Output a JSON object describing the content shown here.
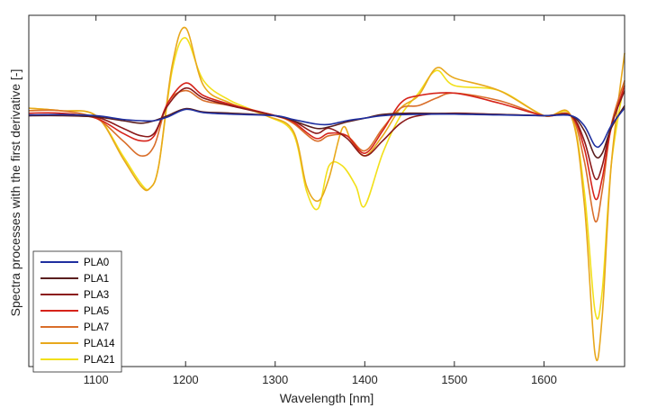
{
  "chart_data": {
    "type": "line",
    "title": "",
    "xlabel": "Wavelength [nm]",
    "ylabel": "Spectra processes with the first derivative [-]",
    "xlim": [
      1025,
      1690
    ],
    "ylim": [
      -1.0,
      0.4
    ],
    "x_ticks": [
      1100,
      1200,
      1300,
      1400,
      1500,
      1600
    ],
    "y_ticks": [],
    "grid": false,
    "legend_position": "bottom-left",
    "series": [
      {
        "name": "PLA0",
        "color": "#1f2f9f",
        "points": [
          [
            1025,
            0.003
          ],
          [
            1060,
            0.004
          ],
          [
            1100,
            0.0
          ],
          [
            1130,
            -0.015
          ],
          [
            1150,
            -0.02
          ],
          [
            1165,
            -0.02
          ],
          [
            1180,
            -0.005
          ],
          [
            1200,
            0.025
          ],
          [
            1220,
            0.012
          ],
          [
            1250,
            0.006
          ],
          [
            1300,
            0.0
          ],
          [
            1320,
            -0.015
          ],
          [
            1345,
            -0.033
          ],
          [
            1360,
            -0.035
          ],
          [
            1380,
            -0.02
          ],
          [
            1400,
            -0.01
          ],
          [
            1420,
            0.0
          ],
          [
            1450,
            0.005
          ],
          [
            1500,
            0.006
          ],
          [
            1550,
            0.003
          ],
          [
            1600,
            0.0
          ],
          [
            1630,
            0.0
          ],
          [
            1645,
            -0.04
          ],
          [
            1657,
            -0.12
          ],
          [
            1665,
            -0.11
          ],
          [
            1675,
            -0.04
          ],
          [
            1690,
            0.03
          ]
        ]
      },
      {
        "name": "PLA1",
        "color": "#5a1e1e",
        "points": [
          [
            1025,
            0.0
          ],
          [
            1060,
            0.0
          ],
          [
            1100,
            -0.005
          ],
          [
            1130,
            -0.02
          ],
          [
            1150,
            -0.03
          ],
          [
            1165,
            -0.02
          ],
          [
            1180,
            0.0
          ],
          [
            1200,
            0.028
          ],
          [
            1220,
            0.015
          ],
          [
            1250,
            0.01
          ],
          [
            1300,
            0.0
          ],
          [
            1320,
            -0.02
          ],
          [
            1345,
            -0.05
          ],
          [
            1360,
            -0.045
          ],
          [
            1380,
            -0.025
          ],
          [
            1400,
            -0.01
          ],
          [
            1420,
            0.005
          ],
          [
            1450,
            0.01
          ],
          [
            1500,
            0.008
          ],
          [
            1550,
            0.005
          ],
          [
            1600,
            0.0
          ],
          [
            1630,
            0.0
          ],
          [
            1645,
            -0.06
          ],
          [
            1657,
            -0.16
          ],
          [
            1665,
            -0.15
          ],
          [
            1675,
            -0.05
          ],
          [
            1690,
            0.04
          ]
        ]
      },
      {
        "name": "PLA3",
        "color": "#8b1a1a",
        "points": [
          [
            1025,
            0.0
          ],
          [
            1060,
            0.005
          ],
          [
            1100,
            -0.005
          ],
          [
            1130,
            -0.05
          ],
          [
            1150,
            -0.08
          ],
          [
            1165,
            -0.07
          ],
          [
            1180,
            0.04
          ],
          [
            1200,
            0.11
          ],
          [
            1220,
            0.07
          ],
          [
            1250,
            0.04
          ],
          [
            1300,
            0.0
          ],
          [
            1320,
            -0.02
          ],
          [
            1345,
            -0.07
          ],
          [
            1360,
            -0.05
          ],
          [
            1380,
            -0.09
          ],
          [
            1400,
            -0.16
          ],
          [
            1420,
            -0.1
          ],
          [
            1440,
            -0.03
          ],
          [
            1460,
            0.0
          ],
          [
            1500,
            0.01
          ],
          [
            1550,
            0.005
          ],
          [
            1600,
            0.0
          ],
          [
            1630,
            0.0
          ],
          [
            1645,
            -0.1
          ],
          [
            1657,
            -0.25
          ],
          [
            1665,
            -0.2
          ],
          [
            1675,
            -0.04
          ],
          [
            1690,
            0.1
          ]
        ]
      },
      {
        "name": "PLA5",
        "color": "#d6231a",
        "points": [
          [
            1025,
            0.01
          ],
          [
            1060,
            0.01
          ],
          [
            1100,
            -0.01
          ],
          [
            1130,
            -0.07
          ],
          [
            1150,
            -0.1
          ],
          [
            1165,
            -0.08
          ],
          [
            1180,
            0.05
          ],
          [
            1200,
            0.13
          ],
          [
            1220,
            0.08
          ],
          [
            1250,
            0.045
          ],
          [
            1300,
            0.0
          ],
          [
            1320,
            -0.025
          ],
          [
            1345,
            -0.09
          ],
          [
            1360,
            -0.07
          ],
          [
            1380,
            -0.08
          ],
          [
            1400,
            -0.15
          ],
          [
            1420,
            -0.06
          ],
          [
            1440,
            0.05
          ],
          [
            1460,
            0.08
          ],
          [
            1500,
            0.09
          ],
          [
            1550,
            0.05
          ],
          [
            1600,
            0.0
          ],
          [
            1630,
            0.0
          ],
          [
            1645,
            -0.13
          ],
          [
            1657,
            -0.33
          ],
          [
            1665,
            -0.25
          ],
          [
            1675,
            -0.05
          ],
          [
            1690,
            0.12
          ]
        ]
      },
      {
        "name": "PLA7",
        "color": "#d96e2a",
        "points": [
          [
            1025,
            0.02
          ],
          [
            1060,
            0.02
          ],
          [
            1100,
            -0.01
          ],
          [
            1130,
            -0.1
          ],
          [
            1150,
            -0.16
          ],
          [
            1165,
            -0.12
          ],
          [
            1180,
            0.05
          ],
          [
            1200,
            0.1
          ],
          [
            1220,
            0.06
          ],
          [
            1250,
            0.04
          ],
          [
            1300,
            0.0
          ],
          [
            1320,
            -0.03
          ],
          [
            1345,
            -0.1
          ],
          [
            1360,
            -0.08
          ],
          [
            1380,
            -0.08
          ],
          [
            1400,
            -0.14
          ],
          [
            1420,
            -0.05
          ],
          [
            1440,
            0.03
          ],
          [
            1460,
            0.04
          ],
          [
            1480,
            0.07
          ],
          [
            1500,
            0.09
          ],
          [
            1550,
            0.06
          ],
          [
            1600,
            0.0
          ],
          [
            1630,
            0.0
          ],
          [
            1645,
            -0.18
          ],
          [
            1657,
            -0.42
          ],
          [
            1665,
            -0.3
          ],
          [
            1675,
            -0.04
          ],
          [
            1690,
            0.14
          ]
        ]
      },
      {
        "name": "PLA14",
        "color": "#e8a81c",
        "points": [
          [
            1025,
            0.03
          ],
          [
            1060,
            0.02
          ],
          [
            1100,
            0.0
          ],
          [
            1130,
            -0.17
          ],
          [
            1150,
            -0.28
          ],
          [
            1160,
            -0.29
          ],
          [
            1170,
            -0.2
          ],
          [
            1185,
            0.2
          ],
          [
            1200,
            0.35
          ],
          [
            1220,
            0.12
          ],
          [
            1250,
            0.05
          ],
          [
            1290,
            0.0
          ],
          [
            1320,
            -0.06
          ],
          [
            1335,
            -0.28
          ],
          [
            1348,
            -0.34
          ],
          [
            1360,
            -0.25
          ],
          [
            1375,
            -0.05
          ],
          [
            1385,
            -0.1
          ],
          [
            1400,
            -0.16
          ],
          [
            1420,
            -0.08
          ],
          [
            1440,
            0.03
          ],
          [
            1460,
            0.08
          ],
          [
            1480,
            0.19
          ],
          [
            1500,
            0.15
          ],
          [
            1550,
            0.1
          ],
          [
            1600,
            0.0
          ],
          [
            1630,
            0.0
          ],
          [
            1645,
            -0.35
          ],
          [
            1657,
            -0.95
          ],
          [
            1665,
            -0.8
          ],
          [
            1675,
            -0.2
          ],
          [
            1690,
            0.25
          ]
        ]
      },
      {
        "name": "PLA21",
        "color": "#f2e01a",
        "points": [
          [
            1025,
            0.03
          ],
          [
            1060,
            0.02
          ],
          [
            1100,
            0.0
          ],
          [
            1130,
            -0.16
          ],
          [
            1150,
            -0.27
          ],
          [
            1160,
            -0.29
          ],
          [
            1170,
            -0.2
          ],
          [
            1185,
            0.18
          ],
          [
            1200,
            0.31
          ],
          [
            1220,
            0.14
          ],
          [
            1250,
            0.06
          ],
          [
            1290,
            0.0
          ],
          [
            1320,
            -0.07
          ],
          [
            1335,
            -0.3
          ],
          [
            1348,
            -0.37
          ],
          [
            1360,
            -0.2
          ],
          [
            1375,
            -0.2
          ],
          [
            1390,
            -0.28
          ],
          [
            1400,
            -0.36
          ],
          [
            1420,
            -0.15
          ],
          [
            1440,
            0.0
          ],
          [
            1460,
            0.09
          ],
          [
            1480,
            0.18
          ],
          [
            1500,
            0.12
          ],
          [
            1550,
            0.1
          ],
          [
            1600,
            0.0
          ],
          [
            1630,
            0.0
          ],
          [
            1645,
            -0.3
          ],
          [
            1657,
            -0.78
          ],
          [
            1665,
            -0.7
          ],
          [
            1675,
            -0.2
          ],
          [
            1690,
            0.14
          ]
        ]
      }
    ]
  }
}
